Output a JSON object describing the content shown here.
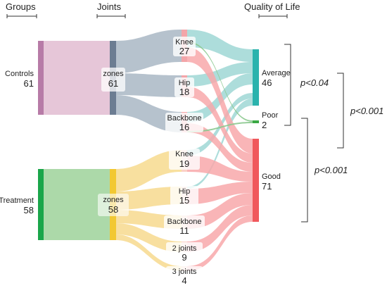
{
  "headers": {
    "groups": "Groups",
    "joints": "Joints",
    "quality": "Quality of Life"
  },
  "groups": {
    "controls": {
      "name": "Controls",
      "value": "61",
      "color": "#b77ba7"
    },
    "treatment": {
      "name": "Treatment",
      "value": "58",
      "color": "#1aa64a"
    }
  },
  "zones": {
    "controls": {
      "name": "zones",
      "value": "61",
      "color": "#6c7d92"
    },
    "treatment": {
      "name": "zones",
      "value": "58",
      "color": "#f2c832"
    }
  },
  "joints": {
    "c_knee": {
      "name": "Knee",
      "value": "27"
    },
    "c_hip": {
      "name": "Hip",
      "value": "18"
    },
    "c_backbone": {
      "name": "Backbone",
      "value": "16"
    },
    "t_knee": {
      "name": "Knee",
      "value": "19"
    },
    "t_hip": {
      "name": "Hip",
      "value": "15"
    },
    "t_backbone": {
      "name": "Backbone",
      "value": "11"
    },
    "t_2joints": {
      "name": "2 joints",
      "value": "9"
    },
    "t_3joints": {
      "name": "3 joints",
      "value": "4"
    }
  },
  "quality": {
    "average": {
      "name": "Average",
      "value": "46",
      "color": "#2bb3ad"
    },
    "poor": {
      "name": "Poor",
      "value": "2",
      "color": "#3aa843"
    },
    "good": {
      "name": "Good",
      "value": "71",
      "color": "#f0585c"
    }
  },
  "pvalues": {
    "p1": "p<0.04",
    "p2": "p<0.001",
    "p3": "p<0.001"
  },
  "colors": {
    "control_flow": "#b3bfcb",
    "treatment_flow": "#f8de9a",
    "good_flow": "#f8a9ab",
    "average_flow": "#9fd8d5",
    "poor_flow": "#8cc990",
    "control_group_fill": "#e6c6d8",
    "treatment_group_fill": "#acd9a9"
  }
}
